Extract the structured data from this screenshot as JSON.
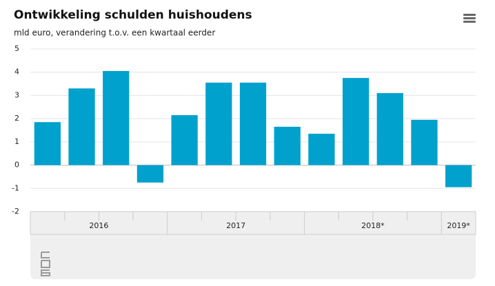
{
  "chart_data": {
    "type": "bar",
    "title": "Ontwikkeling schulden huishoudens",
    "subtitle": "mld euro, verandering t.o.v. een kwartaal eerder",
    "categories": [
      null,
      null,
      null,
      null,
      null,
      null,
      null,
      null,
      null,
      null,
      null,
      null,
      null
    ],
    "x_groups": [
      {
        "label": "2016",
        "count": 4
      },
      {
        "label": "2017",
        "count": 4
      },
      {
        "label": "2018*",
        "count": 4
      },
      {
        "label": "2019*",
        "count": 1
      }
    ],
    "values": [
      1.85,
      3.3,
      4.05,
      -0.75,
      2.15,
      3.55,
      3.55,
      1.65,
      1.35,
      3.75,
      3.1,
      1.95,
      -0.95
    ],
    "color": "#00a1cd",
    "ylim": [
      -2,
      5
    ],
    "yticks": [
      -2,
      -1,
      0,
      1,
      2,
      3,
      4,
      5
    ],
    "grid": true
  }
}
